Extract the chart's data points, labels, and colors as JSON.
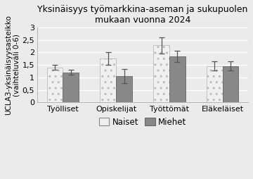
{
  "title": "Yksinäisyys työmarkkina-aseman ja sukupuolen\nmukaan vuonna 2024",
  "ylabel": "UCLA3-yksinäisyysasteikko\n(vaihteluväli 0-6)",
  "categories": [
    "Työlliset",
    "Opiskelijat",
    "Työttömät",
    "Eläkeläiset"
  ],
  "naiset_values": [
    1.4,
    1.75,
    2.28,
    1.46
  ],
  "miehet_values": [
    1.2,
    1.06,
    1.85,
    1.46
  ],
  "naiset_errors": [
    0.1,
    0.25,
    0.32,
    0.18
  ],
  "miehet_errors": [
    0.1,
    0.28,
    0.22,
    0.18
  ],
  "ylim": [
    0,
    3
  ],
  "yticks": [
    0,
    0.5,
    1,
    1.5,
    2,
    2.5,
    3
  ],
  "ytick_labels": [
    "0",
    "0,5",
    "1",
    "1,5",
    "2",
    "2,5",
    "3"
  ],
  "bar_width": 0.3,
  "naiset_facecolor": "#f0f0f0",
  "naiset_hatch": "..",
  "naiset_edgecolor": "#bbbbbb",
  "miehet_facecolor": "#888888",
  "miehet_edgecolor": "#666666",
  "legend_labels": [
    "Naiset",
    "Miehet"
  ],
  "background_color": "#ebebeb",
  "plot_bg_color": "#ebebeb",
  "grid_color": "#ffffff",
  "title_fontsize": 9.0,
  "axis_fontsize": 7.5,
  "tick_fontsize": 8.0,
  "legend_fontsize": 8.5,
  "capsize": 3,
  "elinewidth": 0.9,
  "capthick": 0.9,
  "ecolor": "#555555"
}
